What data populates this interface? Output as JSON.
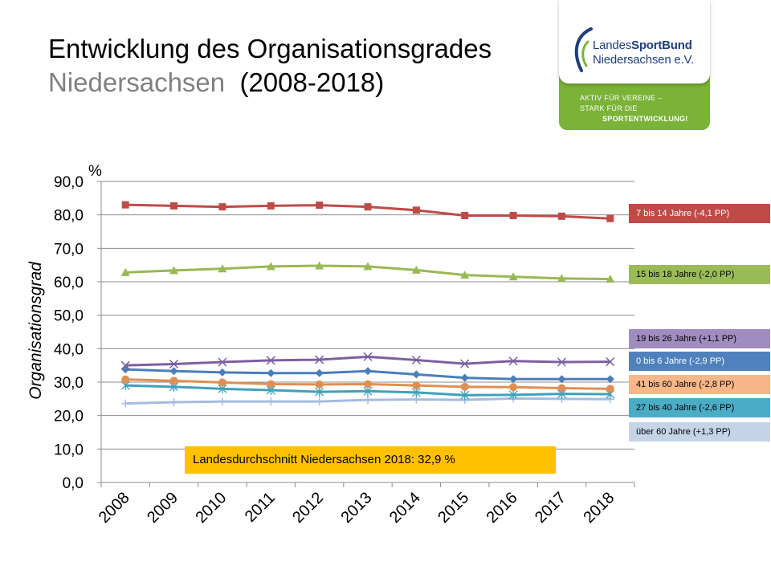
{
  "title": {
    "line1": "Entwicklung des Organisationsgrades",
    "line2_region": "Niedersachsen",
    "line2_period": "(2008-2018)"
  },
  "logo": {
    "name_prefix": "Landes",
    "name_bold": "SportBund",
    "name_line2": "Niedersachsen e.V.",
    "slogan_line1": "AKTIV FÜR VEREINE –",
    "slogan_line2": "STARK FÜR DIE",
    "slogan_line3": "SPORTENTWICKLUNG!"
  },
  "average_note": "Landesdurchschnitt Niedersachsen 2018: 32,9 %",
  "colors": {
    "red": "#be4b48",
    "green": "#98b954",
    "purple": "#7d60a0",
    "blue": "#4a7ebb",
    "orange": "#e08f52",
    "teal": "#3fa1bb",
    "lightblue": "#a4bcde",
    "avg_box": "#ffc000"
  },
  "chart_data": {
    "type": "line",
    "ylabel": "Organisationsgrad",
    "yunit": "%",
    "ylim": [
      0,
      90
    ],
    "yticks": [
      "0,0",
      "10,0",
      "20,0",
      "30,0",
      "40,0",
      "50,0",
      "60,0",
      "70,0",
      "80,0",
      "90,0"
    ],
    "x": [
      "2008",
      "2009",
      "2010",
      "2011",
      "2012",
      "2013",
      "2014",
      "2015",
      "2016",
      "2017",
      "2018"
    ],
    "grid": true,
    "series": [
      {
        "name": "7 bis 14 Jahre (-4,1 PP)",
        "marker": "square",
        "color": "#be4b48",
        "label_bg": "#be4b48",
        "label_fg": "#ffffff",
        "values": [
          83.0,
          82.7,
          82.4,
          82.7,
          82.9,
          82.4,
          81.4,
          79.8,
          79.8,
          79.6,
          78.9
        ]
      },
      {
        "name": "15 bis 18 Jahre (-2,0 PP)",
        "marker": "triangle",
        "color": "#98b954",
        "label_bg": "#9bbb59",
        "label_fg": "#000000",
        "values": [
          62.8,
          63.4,
          63.9,
          64.6,
          64.8,
          64.6,
          63.5,
          62.0,
          61.5,
          61.0,
          60.8
        ]
      },
      {
        "name": "19 bis 26 Jahre (+1,1 PP)",
        "marker": "x",
        "color": "#7d60a0",
        "label_bg": "#a18cc0",
        "label_fg": "#000000",
        "values": [
          35.0,
          35.4,
          36.0,
          36.5,
          36.7,
          37.6,
          36.6,
          35.5,
          36.3,
          36.0,
          36.1
        ]
      },
      {
        "name": "0 bis 6 Jahre (-2,9 PP)",
        "marker": "diamond",
        "color": "#4a7ebb",
        "label_bg": "#4f81bd",
        "label_fg": "#ffffff",
        "values": [
          33.8,
          33.3,
          32.9,
          32.7,
          32.7,
          33.3,
          32.3,
          31.3,
          30.9,
          30.9,
          30.9
        ]
      },
      {
        "name": "41 bis 60 Jahre (-2,8 PP)",
        "marker": "circle",
        "color": "#e08f52",
        "label_bg": "#f9b689",
        "label_fg": "#000000",
        "values": [
          30.8,
          30.4,
          29.9,
          29.4,
          29.3,
          29.4,
          29.0,
          28.6,
          28.5,
          28.2,
          28.0
        ]
      },
      {
        "name": "27 bis 40 Jahre (-2,6 PP)",
        "marker": "asterisk",
        "color": "#3fa1bb",
        "label_bg": "#4bacc6",
        "label_fg": "#000000",
        "values": [
          29.0,
          28.6,
          28.0,
          27.6,
          27.1,
          27.3,
          26.9,
          26.1,
          26.2,
          26.5,
          26.4
        ]
      },
      {
        "name": "über 60 Jahre (+1,3 PP)",
        "marker": "plus",
        "color": "#a4bcde",
        "label_bg": "#c6d4e8",
        "label_fg": "#000000",
        "values": [
          23.6,
          24.0,
          24.2,
          24.2,
          24.2,
          24.7,
          24.8,
          24.7,
          25.1,
          25.0,
          24.9
        ]
      }
    ]
  }
}
